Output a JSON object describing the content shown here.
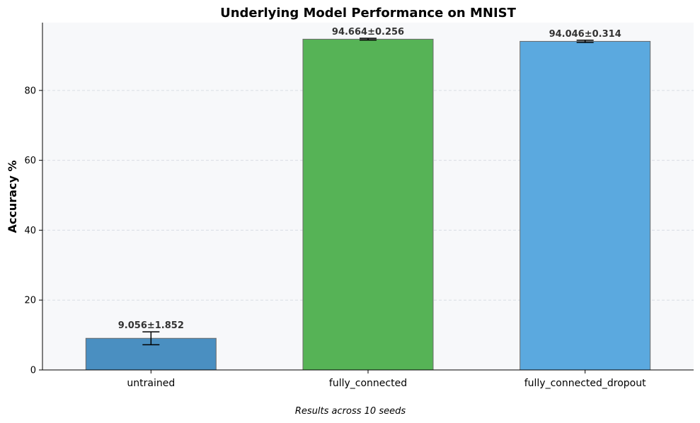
{
  "chart_data": {
    "type": "bar",
    "title": "Underlying Model Performance on MNIST",
    "xlabel": "",
    "ylabel": "Accuracy %",
    "categories": [
      "untrained",
      "fully_connected",
      "fully_connected_dropout"
    ],
    "values": [
      9.056,
      94.664,
      94.046
    ],
    "errors": [
      1.852,
      0.256,
      0.314
    ],
    "data_labels": [
      "9.056±1.852",
      "94.664±0.256",
      "94.046±0.314"
    ],
    "colors": [
      "#4a8fc1",
      "#56b356",
      "#5ba9df"
    ],
    "ylim": [
      0,
      99.4
    ],
    "yticks": [
      0,
      20,
      40,
      60,
      80
    ],
    "grid": true,
    "plot_background": "#f7f8fa",
    "footnote": "Results across 10 seeds"
  }
}
